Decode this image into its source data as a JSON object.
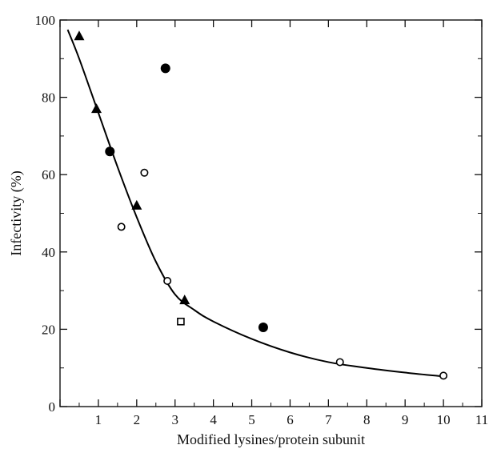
{
  "chart_data": {
    "type": "scatter",
    "title": "",
    "xlabel": "Modified lysines/protein subunit",
    "ylabel": "Infectivity (%)",
    "xlim": [
      0,
      11
    ],
    "ylim": [
      0,
      100
    ],
    "xticks": [
      0,
      1,
      2,
      3,
      4,
      5,
      6,
      7,
      8,
      9,
      10,
      11
    ],
    "xtick_labels": [
      "",
      "1",
      "2",
      "3",
      "4",
      "5",
      "6",
      "7",
      "8",
      "9",
      "10",
      "11"
    ],
    "yticks": [
      0,
      20,
      40,
      60,
      80,
      100
    ],
    "ytick_labels": [
      "0",
      "20",
      "40",
      "60",
      "80",
      "100"
    ],
    "grid": false,
    "series": [
      {
        "marker": "triangle-filled",
        "color": "#000000",
        "x": [
          0.5,
          0.95,
          2.0,
          3.25
        ],
        "y": [
          95.8,
          77.0,
          52.0,
          27.5
        ]
      },
      {
        "marker": "circle-filled",
        "color": "#000000",
        "x": [
          1.3,
          2.75,
          5.3
        ],
        "y": [
          66.0,
          87.5,
          20.5
        ]
      },
      {
        "marker": "circle-open",
        "color": "#000000",
        "x": [
          1.6,
          2.2,
          2.8,
          7.3,
          10.0
        ],
        "y": [
          46.5,
          60.5,
          32.5,
          11.5,
          8.0
        ]
      },
      {
        "marker": "square-open",
        "color": "#000000",
        "x": [
          3.15
        ],
        "y": [
          22.0
        ]
      }
    ],
    "fit_curve": {
      "type": "line",
      "color": "#000000",
      "x": [
        0.2,
        0.5,
        1.0,
        1.5,
        2.0,
        2.5,
        3.0,
        3.5,
        4.0,
        5.0,
        6.0,
        7.0,
        8.0,
        9.0,
        10.0
      ],
      "y": [
        97.5,
        90.0,
        76.0,
        62.0,
        49.0,
        37.5,
        29.0,
        25.0,
        22.0,
        17.5,
        14.0,
        11.5,
        10.0,
        8.8,
        7.8
      ]
    }
  }
}
